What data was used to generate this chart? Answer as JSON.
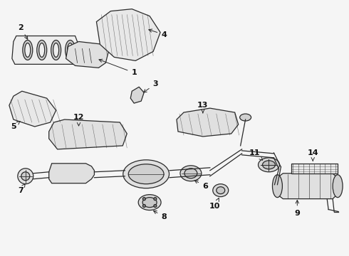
{
  "bg_color": "#f5f5f5",
  "line_color": "#2a2a2a",
  "text_color": "#111111",
  "fig_width": 4.9,
  "fig_height": 3.6,
  "dpi": 100
}
